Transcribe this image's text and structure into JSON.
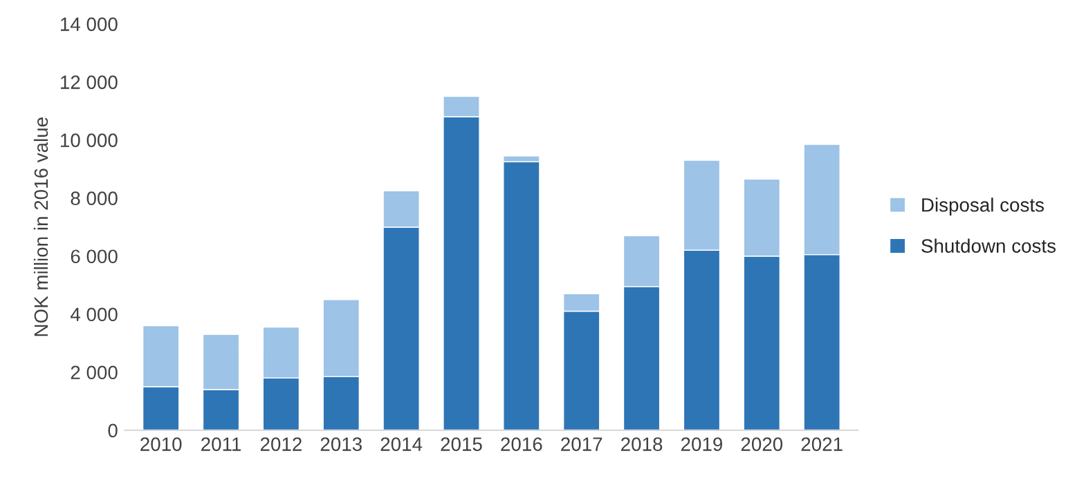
{
  "chart_data": {
    "type": "bar",
    "stacked": true,
    "ylabel": "NOK million in 2016 value",
    "categories": [
      "2010",
      "2011",
      "2012",
      "2013",
      "2014",
      "2015",
      "2016",
      "2017",
      "2018",
      "2019",
      "2020",
      "2021"
    ],
    "series": [
      {
        "name": "Shutdown costs",
        "color": "#2e75b6",
        "values": [
          1500,
          1400,
          1800,
          1850,
          7000,
          10800,
          9250,
          4100,
          4950,
          6200,
          6000,
          6050
        ]
      },
      {
        "name": "Disposal costs",
        "color": "#9dc3e6",
        "values": [
          2100,
          1900,
          1750,
          2650,
          1250,
          700,
          200,
          600,
          1750,
          3100,
          2650,
          3800
        ]
      }
    ],
    "ylim": [
      0,
      14000
    ],
    "yticks": [
      0,
      {
        "value": 2000,
        "label": "2 000"
      },
      {
        "value": 4000,
        "label": "4 000"
      },
      {
        "value": 6000,
        "label": "6 000"
      },
      {
        "value": 8000,
        "label": "8 000"
      },
      {
        "value": 10000,
        "label": "10 000"
      },
      {
        "value": 12000,
        "label": "12 000"
      },
      {
        "value": 14000,
        "label": "14 000"
      }
    ],
    "grid": false,
    "legend": "right"
  }
}
